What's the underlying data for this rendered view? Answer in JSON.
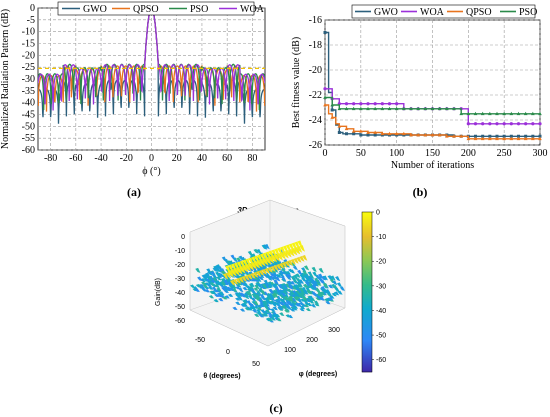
{
  "chart_data": [
    {
      "type": "line",
      "panel_label": "(a)",
      "xlabel": "ϕ (°)",
      "ylabel": "Normalized Radiation Pattern (dB)",
      "xlim": [
        -90,
        90
      ],
      "ylim": [
        -60,
        0
      ],
      "xticks": [
        "-80",
        "-60",
        "-40",
        "-20",
        "0",
        "20",
        "40",
        "60",
        "80"
      ],
      "yticks": [
        "0",
        "-5",
        "-10",
        "-15",
        "-20",
        "-25",
        "-30",
        "-35",
        "-40",
        "-45",
        "-50",
        "-55",
        "-60"
      ],
      "grid": true,
      "legend_position": "top",
      "series": [
        {
          "name": "GWO",
          "color": "#2c5f7c",
          "sll": -30.5,
          "null_depth": -54,
          "seed": 3,
          "period": 6.2
        },
        {
          "name": "QPSO",
          "color": "#e8741e",
          "sll": -24.5,
          "null_depth": -52,
          "seed": 7,
          "period": 6.6
        },
        {
          "name": "PSO",
          "color": "#2a8a4a",
          "sll": -23.8,
          "null_depth": -54,
          "seed": 11,
          "period": 5.9
        },
        {
          "name": "WOA",
          "color": "#9b30d9",
          "sll": -24.0,
          "null_depth": -54,
          "seed": 17,
          "period": 6.4
        }
      ],
      "mainlobe": {
        "peak": 0,
        "halfwidth": 5.5
      },
      "annotation_level": -25.5
    },
    {
      "type": "line",
      "panel_label": "(b)",
      "xlabel": "Number of iterations",
      "ylabel": "Best fitness value (dB)",
      "xlim": [
        0,
        300
      ],
      "ylim": [
        -26,
        -16
      ],
      "xticks": [
        "0",
        "50",
        "100",
        "150",
        "200",
        "250",
        "300"
      ],
      "yticks": [
        "-16",
        "-18",
        "-20",
        "-22",
        "-24",
        "-26"
      ],
      "grid": true,
      "legend_position": "top",
      "series": [
        {
          "name": "GWO",
          "color": "#2c5f7c",
          "marker": "square",
          "x": [
            0,
            5,
            5,
            10,
            10,
            15,
            15,
            20,
            20,
            25,
            25,
            50,
            50,
            180,
            180,
            300
          ],
          "y": [
            -17,
            -17,
            -21.8,
            -21.8,
            -23.2,
            -23.2,
            -24.4,
            -24.4,
            -25.0,
            -25.0,
            -25.1,
            -25.1,
            -25.2,
            -25.2,
            -25.3,
            -25.3
          ]
        },
        {
          "name": "WOA",
          "color": "#9b30d9",
          "marker": "circle",
          "x": [
            0,
            10,
            10,
            20,
            20,
            110,
            110,
            200,
            200,
            300
          ],
          "y": [
            -21.5,
            -21.5,
            -22.3,
            -22.3,
            -22.7,
            -22.7,
            -23.1,
            -23.1,
            -24.3,
            -24.3
          ]
        },
        {
          "name": "QPSO",
          "color": "#e8741e",
          "marker": "triangle",
          "x": [
            0,
            5,
            5,
            10,
            10,
            15,
            15,
            20,
            20,
            30,
            30,
            40,
            40,
            60,
            60,
            80,
            80,
            120,
            120,
            170,
            170,
            200,
            200,
            300
          ],
          "y": [
            -22.8,
            -22.8,
            -23.5,
            -23.5,
            -23.8,
            -23.8,
            -24.3,
            -24.3,
            -24.5,
            -24.5,
            -24.7,
            -24.7,
            -24.9,
            -24.9,
            -25.0,
            -25.0,
            -25.1,
            -25.1,
            -25.2,
            -25.2,
            -25.3,
            -25.3,
            -25.5,
            -25.5
          ]
        },
        {
          "name": "PSO",
          "color": "#2a8a4a",
          "marker": "triangle",
          "x": [
            0,
            10,
            10,
            20,
            20,
            190,
            190,
            300
          ],
          "y": [
            -22.2,
            -22.2,
            -22.8,
            -22.8,
            -23.1,
            -23.1,
            -23.5,
            -23.5
          ]
        }
      ]
    },
    {
      "type": "surface",
      "panel_label": "(c)",
      "title": "3D array pattern",
      "zlabel": "Gain(dB)",
      "xlabel": "θ (degrees)",
      "ylabel": "φ (degrees)",
      "zticks": [
        "0",
        "-10",
        "-20",
        "-30",
        "-40",
        "-50",
        "-60"
      ],
      "theta_ticks": [
        "-50",
        "0",
        "50"
      ],
      "phi_ticks": [
        "100",
        "200",
        "300"
      ],
      "colorbar_ticks": [
        "0",
        "-10",
        "-20",
        "-30",
        "-40",
        "-50",
        "-60"
      ],
      "colorbar_range": [
        -65,
        0
      ]
    }
  ]
}
